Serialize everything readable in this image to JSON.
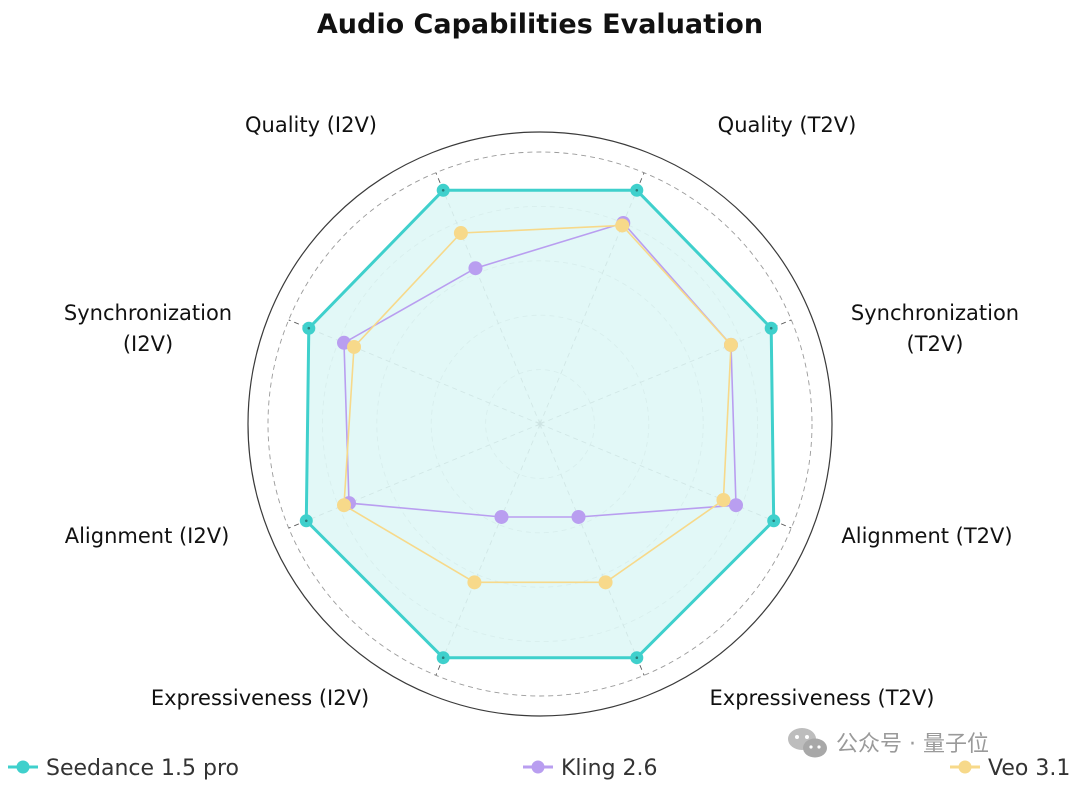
{
  "chart_data": {
    "type": "radar",
    "title": "Audio Capabilities Evaluation",
    "axes": [
      "Quality (T2V)",
      "Synchronization (T2V)",
      "Alignment (T2V)",
      "Expressiveness (T2V)",
      "Expressiveness (I2V)",
      "Alignment (I2V)",
      "Synchronization (I2V)",
      "Quality (I2V)"
    ],
    "range": [
      0,
      1
    ],
    "series": [
      {
        "name": "Seedance 1.5 pro",
        "color": "#3fd0cc",
        "fill": "#dff7f6",
        "values": [
          0.93,
          0.92,
          0.93,
          0.93,
          0.93,
          0.93,
          0.92,
          0.93
        ]
      },
      {
        "name": "Kling 2.6",
        "color": "#b99ef0",
        "values": [
          0.8,
          0.76,
          0.78,
          0.37,
          0.37,
          0.76,
          0.78,
          0.62
        ]
      },
      {
        "name": "Veo 3.1",
        "color": "#f7d98a",
        "values": [
          0.79,
          0.76,
          0.73,
          0.63,
          0.63,
          0.78,
          0.74,
          0.76
        ]
      }
    ]
  },
  "watermark": {
    "text": "公众号 · 量子位"
  }
}
